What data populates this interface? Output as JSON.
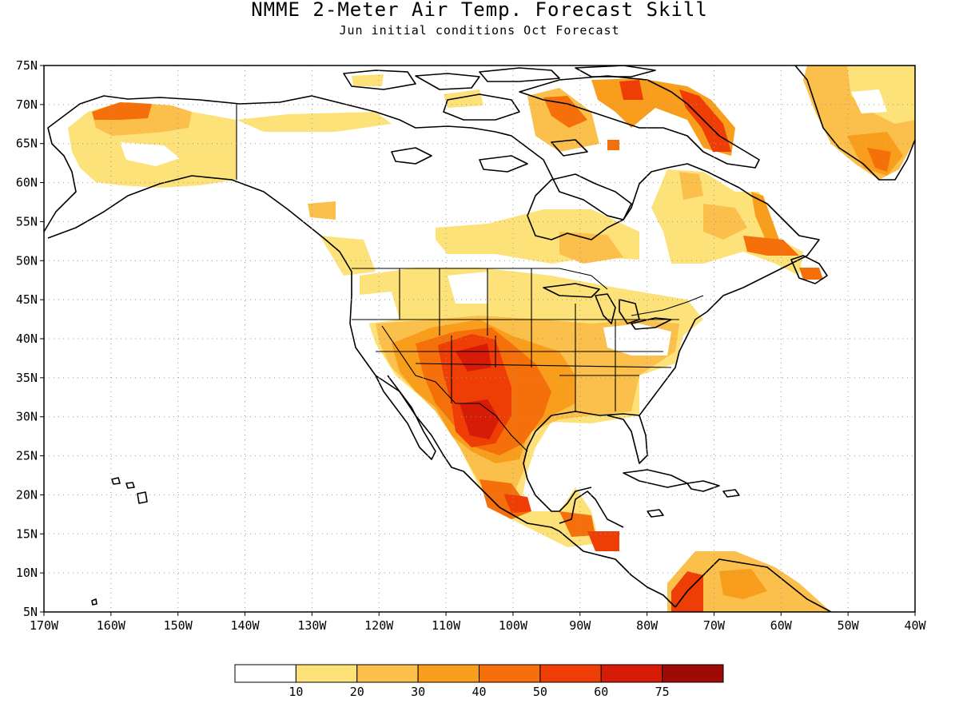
{
  "title": "NMME 2-Meter Air Temp. Forecast Skill",
  "subtitle": "Jun initial conditions  Oct Forecast",
  "map": {
    "lon_range": [
      -170,
      -40
    ],
    "lat_range": [
      5,
      75
    ],
    "lat_labels": [
      "75N",
      "70N",
      "65N",
      "60N",
      "55N",
      "50N",
      "45N",
      "40N",
      "35N",
      "30N",
      "25N",
      "20N",
      "15N",
      "10N",
      "5N"
    ],
    "lon_labels": [
      "170W",
      "160W",
      "150W",
      "140W",
      "130W",
      "120W",
      "110W",
      "100W",
      "90W",
      "80W",
      "70W",
      "60W",
      "50W",
      "40W"
    ],
    "grid": "dotted"
  },
  "colorbar": {
    "colors": [
      "#ffffff",
      "#fde27a",
      "#fbbf4c",
      "#f89d1c",
      "#f56f0a",
      "#ef3d06",
      "#d61b07",
      "#9e0a06"
    ],
    "labels": [
      "10",
      "20",
      "30",
      "40",
      "50",
      "60",
      "75"
    ]
  }
}
